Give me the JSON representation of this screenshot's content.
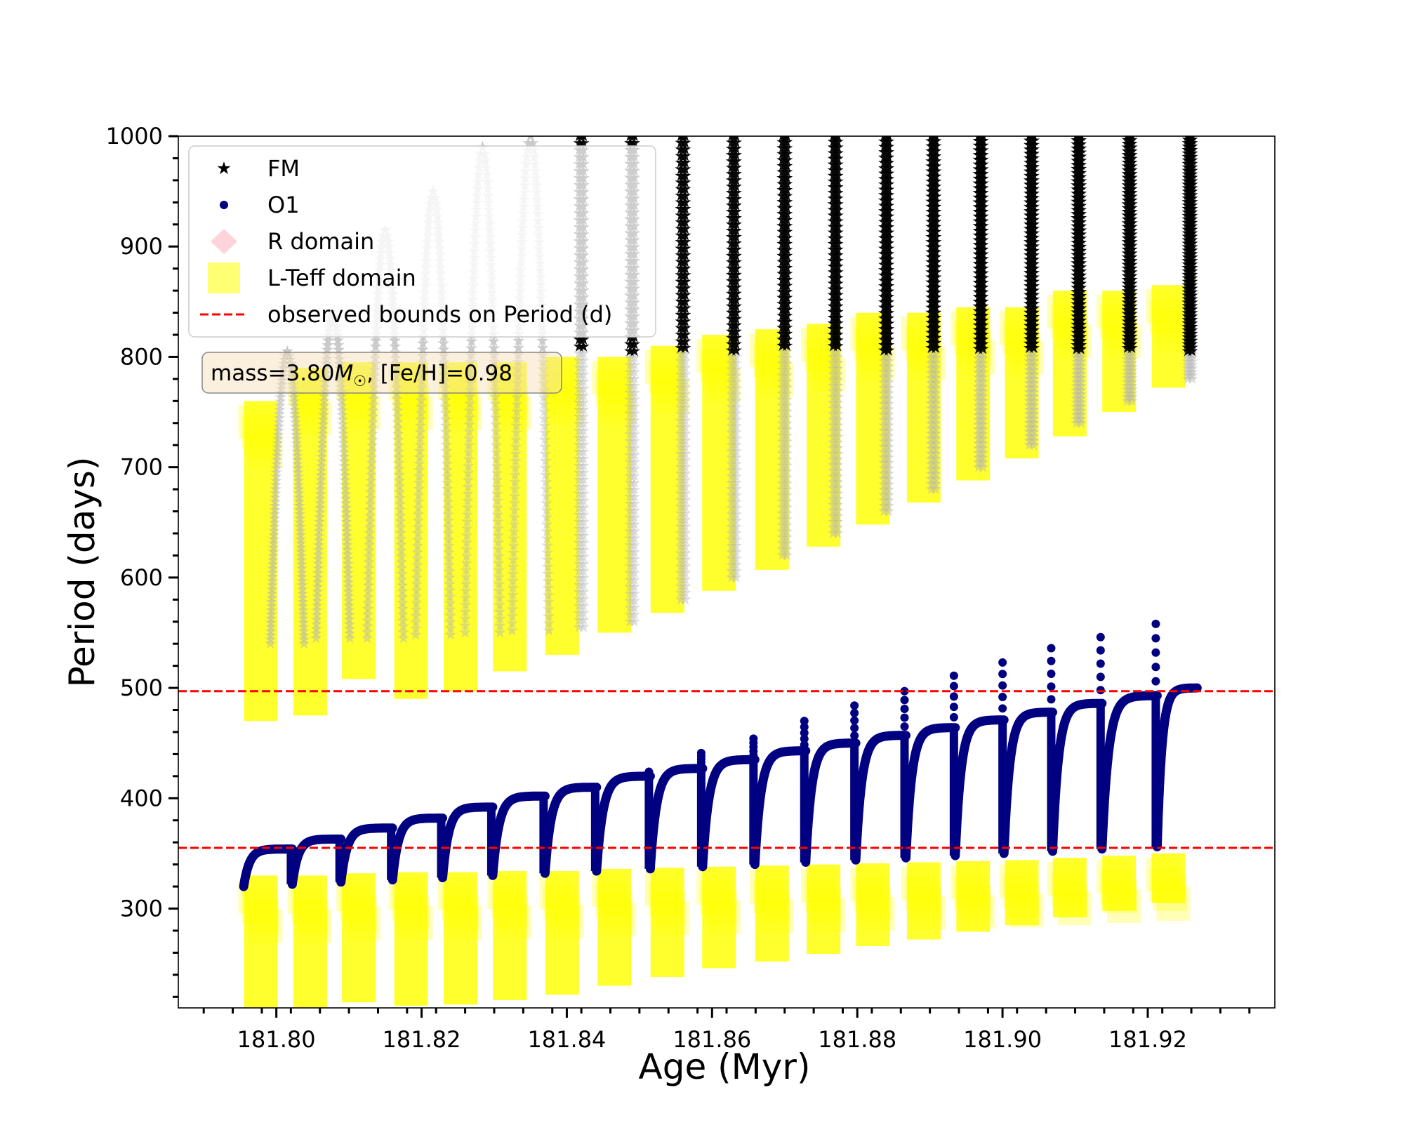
{
  "chart_data": {
    "type": "scatter",
    "xlabel": "Age (Myr)",
    "ylabel": "Period (days)",
    "xlim": [
      181.7865,
      181.9375
    ],
    "ylim": [
      210,
      1000
    ],
    "xticks": [
      "181.80",
      "181.82",
      "181.84",
      "181.86",
      "181.88",
      "181.90",
      "181.92"
    ],
    "yticks": [
      "300",
      "400",
      "500",
      "600",
      "700",
      "800",
      "900",
      "1000"
    ],
    "grid": false,
    "legend_position": "top-left",
    "legend": [
      {
        "label": "FM",
        "marker": "star",
        "color": "#000000"
      },
      {
        "label": "O1",
        "marker": "circle",
        "color": "#000080"
      },
      {
        "label": "R domain",
        "marker": "diamond",
        "color": "#ffc0cb"
      },
      {
        "label": "L-Teff domain",
        "marker": "square",
        "color": "#ffff00"
      },
      {
        "label": "observed bounds on Period (d)",
        "marker": "dashed-line",
        "color": "#ff0000"
      }
    ],
    "annotation": {
      "prefix": "mass=3.80",
      "symbol": "M",
      "subscript": "☉",
      "suffix": ", [Fe/H]=0.98"
    },
    "observed_bounds": [
      355,
      497
    ],
    "pulses": [
      {
        "x_start": 181.7955,
        "x_end": 181.8022,
        "o1_min": 320,
        "o1_max": 354,
        "o1_spike": null,
        "fm_min": 540,
        "fm_max": 805,
        "fm_peak_x": 181.8015
      },
      {
        "x_start": 181.8022,
        "x_end": 181.8089,
        "o1_min": 322,
        "o1_max": 363,
        "o1_spike": null,
        "fm_min": 545,
        "fm_max": 840,
        "fm_peak_x": 181.8078
      },
      {
        "x_start": 181.8089,
        "x_end": 181.816,
        "o1_min": 324,
        "o1_max": 373,
        "o1_spike": null,
        "fm_min": 545,
        "fm_max": 915,
        "fm_peak_x": 181.815
      },
      {
        "x_start": 181.816,
        "x_end": 181.8229,
        "o1_min": 326,
        "o1_max": 382,
        "o1_spike": null,
        "fm_min": 548,
        "fm_max": 950,
        "fm_peak_x": 181.8216
      },
      {
        "x_start": 181.8229,
        "x_end": 181.8298,
        "o1_min": 328,
        "o1_max": 392,
        "o1_spike": null,
        "fm_min": 550,
        "fm_max": 990,
        "fm_peak_x": 181.8284
      },
      {
        "x_start": 181.8298,
        "x_end": 181.837,
        "o1_min": 330,
        "o1_max": 402,
        "o1_spike": null,
        "fm_min": 552,
        "fm_max": 1000,
        "fm_peak_x": 181.835
      },
      {
        "x_start": 181.837,
        "x_end": 181.8441,
        "o1_min": 332,
        "o1_max": 410,
        "o1_spike": null,
        "fm_min": 555,
        "fm_max": 1000,
        "fm_peak_x": 181.842
      },
      {
        "x_start": 181.8441,
        "x_end": 181.8515,
        "o1_min": 334,
        "o1_max": 420,
        "o1_spike": 424,
        "fm_min": 560,
        "fm_max": 1000,
        "fm_peak_x": 181.849
      },
      {
        "x_start": 181.8515,
        "x_end": 181.8587,
        "o1_min": 336,
        "o1_max": 427,
        "o1_spike": 441,
        "fm_min": 580,
        "fm_max": 1000,
        "fm_peak_x": 181.856
      },
      {
        "x_start": 181.8587,
        "x_end": 181.8659,
        "o1_min": 338,
        "o1_max": 435,
        "o1_spike": 454,
        "fm_min": 600,
        "fm_max": 1000,
        "fm_peak_x": 181.863
      },
      {
        "x_start": 181.8659,
        "x_end": 181.8729,
        "o1_min": 340,
        "o1_max": 443,
        "o1_spike": 470,
        "fm_min": 620,
        "fm_max": 1000,
        "fm_peak_x": 181.87
      },
      {
        "x_start": 181.8729,
        "x_end": 181.8798,
        "o1_min": 342,
        "o1_max": 450,
        "o1_spike": 484,
        "fm_min": 640,
        "fm_max": 1000,
        "fm_peak_x": 181.877
      },
      {
        "x_start": 181.8798,
        "x_end": 181.8867,
        "o1_min": 344,
        "o1_max": 457,
        "o1_spike": 497,
        "fm_min": 660,
        "fm_max": 1000,
        "fm_peak_x": 181.884
      },
      {
        "x_start": 181.8867,
        "x_end": 181.8935,
        "o1_min": 346,
        "o1_max": 464,
        "o1_spike": 511,
        "fm_min": 680,
        "fm_max": 1000,
        "fm_peak_x": 181.8905
      },
      {
        "x_start": 181.8935,
        "x_end": 181.9002,
        "o1_min": 348,
        "o1_max": 471,
        "o1_spike": 523,
        "fm_min": 700,
        "fm_max": 1000,
        "fm_peak_x": 181.897
      },
      {
        "x_start": 181.9002,
        "x_end": 181.9069,
        "o1_min": 350,
        "o1_max": 478,
        "o1_spike": 536,
        "fm_min": 720,
        "fm_max": 1000,
        "fm_peak_x": 181.904
      },
      {
        "x_start": 181.9069,
        "x_end": 181.9137,
        "o1_min": 352,
        "o1_max": 486,
        "o1_spike": 546,
        "fm_min": 740,
        "fm_max": 1000,
        "fm_peak_x": 181.9105
      },
      {
        "x_start": 181.9137,
        "x_end": 181.9213,
        "o1_min": 354,
        "o1_max": 493,
        "o1_spike": 558,
        "fm_min": 760,
        "fm_max": 1000,
        "fm_peak_x": 181.9175
      },
      {
        "x_start": 181.9213,
        "x_end": 181.9268,
        "o1_min": 356,
        "o1_max": 500,
        "o1_spike": null,
        "fm_min": 780,
        "fm_max": 1000,
        "fm_peak_x": null
      }
    ],
    "lteff_domain_upper": [
      {
        "x": 181.796,
        "y_min": 470,
        "y_max": 760
      },
      {
        "x": 181.8028,
        "y_min": 475,
        "y_max": 790
      },
      {
        "x": 181.8095,
        "y_min": 508,
        "y_max": 795
      },
      {
        "x": 181.8167,
        "y_min": 490,
        "y_max": 795
      },
      {
        "x": 181.8235,
        "y_min": 497,
        "y_max": 795
      },
      {
        "x": 181.8303,
        "y_min": 515,
        "y_max": 795
      },
      {
        "x": 181.8375,
        "y_min": 530,
        "y_max": 800
      },
      {
        "x": 181.8447,
        "y_min": 550,
        "y_max": 800
      },
      {
        "x": 181.852,
        "y_min": 568,
        "y_max": 810
      },
      {
        "x": 181.8591,
        "y_min": 588,
        "y_max": 820
      },
      {
        "x": 181.8664,
        "y_min": 607,
        "y_max": 825
      },
      {
        "x": 181.8735,
        "y_min": 628,
        "y_max": 830
      },
      {
        "x": 181.8803,
        "y_min": 648,
        "y_max": 840
      },
      {
        "x": 181.8873,
        "y_min": 668,
        "y_max": 840
      },
      {
        "x": 181.8941,
        "y_min": 688,
        "y_max": 845
      },
      {
        "x": 181.9008,
        "y_min": 708,
        "y_max": 845
      },
      {
        "x": 181.9074,
        "y_min": 728,
        "y_max": 860
      },
      {
        "x": 181.9142,
        "y_min": 750,
        "y_max": 860
      },
      {
        "x": 181.921,
        "y_min": 772,
        "y_max": 865
      }
    ],
    "lteff_domain_lower": [
      {
        "x": 181.796,
        "y_min": 210,
        "y_max": 330
      },
      {
        "x": 181.8028,
        "y_min": 210,
        "y_max": 330
      },
      {
        "x": 181.8095,
        "y_min": 215,
        "y_max": 332
      },
      {
        "x": 181.8167,
        "y_min": 212,
        "y_max": 333
      },
      {
        "x": 181.8235,
        "y_min": 213,
        "y_max": 333
      },
      {
        "x": 181.8303,
        "y_min": 217,
        "y_max": 334
      },
      {
        "x": 181.8375,
        "y_min": 222,
        "y_max": 334
      },
      {
        "x": 181.8447,
        "y_min": 230,
        "y_max": 336
      },
      {
        "x": 181.852,
        "y_min": 238,
        "y_max": 337
      },
      {
        "x": 181.8591,
        "y_min": 246,
        "y_max": 338
      },
      {
        "x": 181.8664,
        "y_min": 252,
        "y_max": 339
      },
      {
        "x": 181.8735,
        "y_min": 259,
        "y_max": 340
      },
      {
        "x": 181.8803,
        "y_min": 266,
        "y_max": 341
      },
      {
        "x": 181.8873,
        "y_min": 272,
        "y_max": 342
      },
      {
        "x": 181.8941,
        "y_min": 279,
        "y_max": 343
      },
      {
        "x": 181.9008,
        "y_min": 285,
        "y_max": 344
      },
      {
        "x": 181.9074,
        "y_min": 292,
        "y_max": 346
      },
      {
        "x": 181.9142,
        "y_min": 298,
        "y_max": 348
      },
      {
        "x": 181.921,
        "y_min": 305,
        "y_max": 350
      }
    ]
  }
}
